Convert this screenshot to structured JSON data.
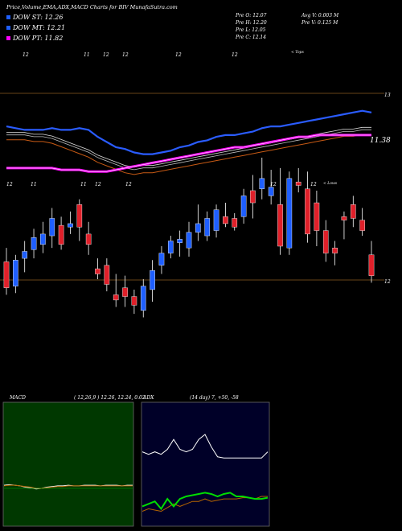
{
  "header": {
    "title": "Price,Volume,EMA,ADX,MACD Charts for BIV MunafaSutra.com",
    "dow_st": "DOW ST: 12.26",
    "dow_mt": "DOW MT: 12.21",
    "dow_pt": "DOW PT: 11.82",
    "prev_open": "Pre   O: 12.07",
    "prev_high": "Pre   H: 12.20",
    "prev_low": "Pre   L: 12.05",
    "prev_close": "Pre   C: 12.14",
    "avg_volume": "Avg V: 0.003 M",
    "prev_volume": "Pre   V: 0.125 M"
  },
  "colors": {
    "background": "#000000",
    "up_candle": "#1f5fff",
    "down_candle": "#e0202a",
    "ema_short": "#2a5cff",
    "ema_long": "#c85a14",
    "dow_pt": "#ff00ff",
    "dow_st": "#ffffff",
    "dow_mt": "#2a9a2a",
    "macd_panel": "#003800",
    "adx_panel": "#000028",
    "adx_di_plus": "#00dd00",
    "adx_di_minus": "#b46400"
  },
  "chart_data": [
    {
      "type": "candlestick",
      "title": "",
      "right_axis_labels": [
        "13",
        "11.38",
        "12"
      ],
      "top_strip_labels": [
        "12",
        "11",
        "12",
        "12",
        "12",
        "12",
        "< Tops"
      ],
      "mid_strip_labels": [
        "12",
        "11",
        "11",
        "12",
        "12",
        "12",
        "12",
        "< Lows"
      ],
      "ylim": [
        11.35,
        13.25
      ],
      "candles": [
        {
          "o": 12.02,
          "h": 12.1,
          "l": 11.83,
          "c": 11.87
        },
        {
          "o": 11.88,
          "h": 12.06,
          "l": 11.84,
          "c": 12.03
        },
        {
          "o": 12.04,
          "h": 12.14,
          "l": 11.96,
          "c": 12.08
        },
        {
          "o": 12.09,
          "h": 12.21,
          "l": 12.04,
          "c": 12.16
        },
        {
          "o": 12.12,
          "h": 12.25,
          "l": 12.07,
          "c": 12.18
        },
        {
          "o": 12.17,
          "h": 12.33,
          "l": 12.1,
          "c": 12.27
        },
        {
          "o": 12.23,
          "h": 12.28,
          "l": 12.09,
          "c": 12.12
        },
        {
          "o": 12.22,
          "h": 12.31,
          "l": 12.18,
          "c": 12.24
        },
        {
          "o": 12.35,
          "h": 12.38,
          "l": 12.14,
          "c": 12.22
        },
        {
          "o": 12.18,
          "h": 12.25,
          "l": 12.06,
          "c": 12.12
        },
        {
          "o": 11.98,
          "h": 12.04,
          "l": 11.92,
          "c": 11.95
        },
        {
          "o": 12.0,
          "h": 12.04,
          "l": 11.85,
          "c": 11.89
        },
        {
          "o": 11.83,
          "h": 11.95,
          "l": 11.76,
          "c": 11.8
        },
        {
          "o": 11.87,
          "h": 11.94,
          "l": 11.76,
          "c": 11.82
        },
        {
          "o": 11.82,
          "h": 11.86,
          "l": 11.72,
          "c": 11.77
        },
        {
          "o": 11.74,
          "h": 11.92,
          "l": 11.7,
          "c": 11.88
        },
        {
          "o": 11.86,
          "h": 12.03,
          "l": 11.79,
          "c": 11.97
        },
        {
          "o": 12.0,
          "h": 12.11,
          "l": 11.95,
          "c": 12.07
        },
        {
          "o": 12.07,
          "h": 12.17,
          "l": 12.04,
          "c": 12.14
        },
        {
          "o": 12.13,
          "h": 12.2,
          "l": 12.05,
          "c": 12.15
        },
        {
          "o": 12.1,
          "h": 12.25,
          "l": 12.05,
          "c": 12.19
        },
        {
          "o": 12.19,
          "h": 12.35,
          "l": 12.14,
          "c": 12.24
        },
        {
          "o": 12.17,
          "h": 12.31,
          "l": 12.14,
          "c": 12.27
        },
        {
          "o": 12.2,
          "h": 12.35,
          "l": 12.16,
          "c": 12.32
        },
        {
          "o": 12.28,
          "h": 12.36,
          "l": 12.22,
          "c": 12.24
        },
        {
          "o": 12.27,
          "h": 12.3,
          "l": 12.2,
          "c": 12.22
        },
        {
          "o": 12.28,
          "h": 12.44,
          "l": 12.24,
          "c": 12.4
        },
        {
          "o": 12.43,
          "h": 12.52,
          "l": 12.27,
          "c": 12.36
        },
        {
          "o": 12.44,
          "h": 12.62,
          "l": 12.38,
          "c": 12.5
        },
        {
          "o": 12.4,
          "h": 12.55,
          "l": 12.35,
          "c": 12.45
        },
        {
          "o": 12.35,
          "h": 12.56,
          "l": 12.06,
          "c": 12.11
        },
        {
          "o": 12.1,
          "h": 12.54,
          "l": 12.06,
          "c": 12.5
        },
        {
          "o": 12.48,
          "h": 12.56,
          "l": 12.42,
          "c": 12.46
        },
        {
          "o": 12.44,
          "h": 12.54,
          "l": 12.13,
          "c": 12.18
        },
        {
          "o": 12.36,
          "h": 12.43,
          "l": 12.11,
          "c": 12.2
        },
        {
          "o": 12.2,
          "h": 12.26,
          "l": 12.02,
          "c": 12.07
        },
        {
          "o": 12.1,
          "h": 12.14,
          "l": 12.0,
          "c": 12.07
        },
        {
          "o": 12.28,
          "h": 12.31,
          "l": 12.15,
          "c": 12.26
        },
        {
          "o": 12.35,
          "h": 12.4,
          "l": 12.22,
          "c": 12.27
        },
        {
          "o": 12.26,
          "h": 12.33,
          "l": 12.17,
          "c": 12.2
        },
        {
          "o": 12.06,
          "h": 12.14,
          "l": 11.9,
          "c": 11.94
        }
      ],
      "ema_short": [
        12.8,
        12.79,
        12.78,
        12.78,
        12.78,
        12.79,
        12.78,
        12.78,
        12.79,
        12.78,
        12.74,
        12.71,
        12.68,
        12.67,
        12.65,
        12.64,
        12.64,
        12.65,
        12.66,
        12.68,
        12.69,
        12.71,
        12.72,
        12.74,
        12.75,
        12.75,
        12.76,
        12.77,
        12.79,
        12.8,
        12.8,
        12.81,
        12.82,
        12.83,
        12.84,
        12.85,
        12.86,
        12.87,
        12.88,
        12.89,
        12.88
      ],
      "ema_long": [
        12.76,
        12.76,
        12.76,
        12.75,
        12.75,
        12.74,
        12.72,
        12.7,
        12.68,
        12.66,
        12.63,
        12.61,
        12.59,
        12.57,
        12.56,
        12.57,
        12.57,
        12.58,
        12.59,
        12.6,
        12.61,
        12.62,
        12.63,
        12.64,
        12.65,
        12.66,
        12.67,
        12.68,
        12.69,
        12.7,
        12.71,
        12.72,
        12.73,
        12.74,
        12.75,
        12.76,
        12.77,
        12.78,
        12.78,
        12.79,
        12.79
      ],
      "dow_pt_line": [
        12.56,
        12.56,
        12.56,
        12.56,
        12.56,
        12.56,
        12.55,
        12.55,
        12.55,
        12.54,
        12.54,
        12.54,
        12.55,
        12.56,
        12.57,
        12.58,
        12.59,
        12.6,
        12.61,
        12.62,
        12.63,
        12.64,
        12.65,
        12.66,
        12.67,
        12.68,
        12.68,
        12.69,
        12.7,
        12.71,
        12.72,
        12.73,
        12.74,
        12.74,
        12.75,
        12.75,
        12.75,
        12.75,
        12.75,
        12.75,
        12.75
      ]
    },
    {
      "type": "line",
      "title": "MACD",
      "params": "( 12,26,9 ) 12.26,  12.24,  0.02",
      "ylim": [
        -1,
        1
      ],
      "series": [
        {
          "values": [
            0.05,
            0.06,
            0.05,
            0.04,
            0.02,
            0.01,
            -0.01,
            0.0,
            0.02,
            0.03,
            0.04,
            0.04,
            0.05,
            0.04,
            0.04,
            0.05,
            0.05,
            0.05,
            0.04,
            0.05,
            0.05,
            0.05,
            0.04,
            0.05,
            0.05
          ]
        },
        {
          "values": [
            0.04,
            0.05,
            0.05,
            0.04,
            0.03,
            0.02,
            0.0,
            0.0,
            0.01,
            0.02,
            0.03,
            0.03,
            0.04,
            0.04,
            0.04,
            0.04,
            0.04,
            0.04,
            0.04,
            0.04,
            0.04,
            0.04,
            0.04,
            0.04,
            0.04
          ]
        }
      ]
    },
    {
      "type": "line",
      "title": "ADX",
      "params": "(14  day) 7,  +50,  -58",
      "ylim": [
        0,
        100
      ],
      "series": [
        {
          "values": [
            12,
            14,
            13,
            12,
            15,
            18,
            16,
            18,
            20,
            20,
            22,
            20,
            21,
            22,
            22,
            22,
            23,
            23,
            22,
            24,
            24
          ]
        },
        {
          "values": [
            16,
            18,
            20,
            14,
            22,
            16,
            22,
            24,
            25,
            26,
            27,
            26,
            24,
            26,
            27,
            24,
            24,
            23,
            22,
            22,
            23
          ]
        },
        {
          "values": [
            60,
            58,
            60,
            58,
            62,
            70,
            62,
            60,
            62,
            70,
            74,
            64,
            56,
            55,
            55,
            55,
            55,
            55,
            55,
            55,
            60
          ]
        }
      ]
    }
  ]
}
